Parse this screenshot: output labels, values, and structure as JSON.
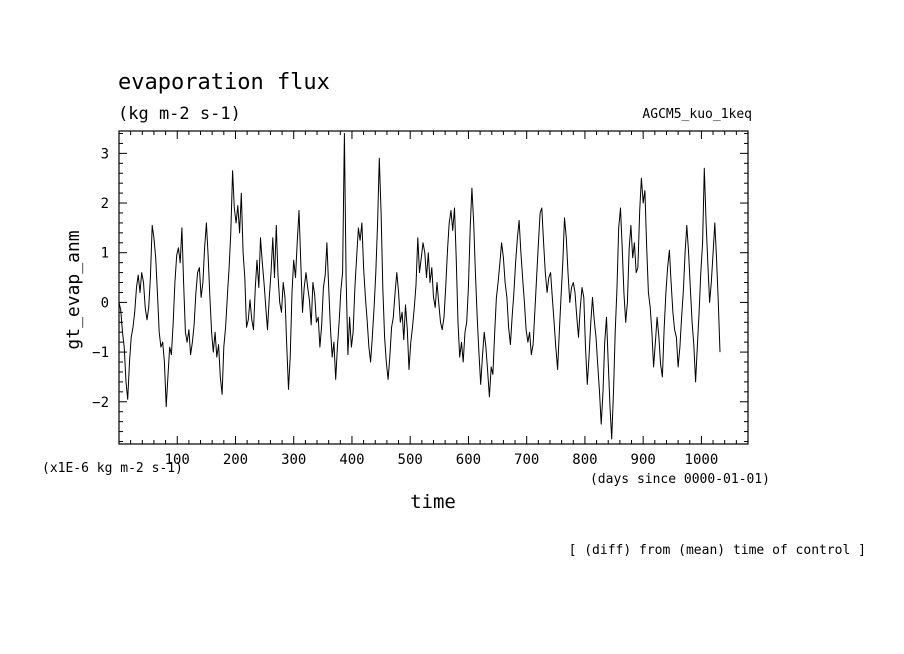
{
  "chart_data": {
    "type": "line",
    "title": "evaporation flux",
    "units": "(kg m-2 s-1)",
    "experiment": "AGCM5_kuo_1keq",
    "ylabel": "gt_evap_anm",
    "xlabel": "time",
    "x_units": "(days since 0000-01-01)",
    "y_scale_note": "(x1E-6 kg m-2 s-1)",
    "footnote": "[ (diff) from (mean) time of control ]",
    "xlim": [
      0,
      1080
    ],
    "ylim": [
      -2.85,
      3.45
    ],
    "xticks": [
      100,
      200,
      300,
      400,
      500,
      600,
      700,
      800,
      900,
      1000
    ],
    "yticks": [
      -2,
      -1,
      0,
      1,
      2,
      3
    ],
    "series": [
      {
        "name": "gt_evap_anm",
        "x_step": 3,
        "values": [
          0.0,
          -0.15,
          -0.6,
          -0.9,
          -1.6,
          -1.95,
          -1.2,
          -0.7,
          -0.5,
          -0.2,
          0.3,
          0.55,
          0.2,
          0.6,
          0.4,
          -0.1,
          -0.35,
          -0.1,
          0.5,
          1.55,
          1.3,
          0.9,
          0.2,
          -0.6,
          -0.9,
          -0.8,
          -1.2,
          -2.1,
          -1.5,
          -0.9,
          -1.05,
          -0.4,
          0.4,
          0.95,
          1.1,
          0.8,
          1.5,
          0.4,
          -0.6,
          -0.8,
          -0.55,
          -1.05,
          -0.8,
          -0.45,
          0.2,
          0.6,
          0.7,
          0.1,
          0.4,
          1.1,
          1.6,
          0.95,
          0.1,
          -0.6,
          -1.0,
          -0.6,
          -1.1,
          -0.85,
          -1.5,
          -1.85,
          -0.9,
          -0.5,
          0.1,
          0.7,
          1.4,
          2.65,
          1.9,
          1.6,
          1.95,
          1.4,
          2.2,
          1.0,
          0.5,
          -0.5,
          -0.35,
          0.05,
          -0.35,
          -0.55,
          0.3,
          0.85,
          0.3,
          1.3,
          0.8,
          0.4,
          -0.1,
          -0.55,
          0.1,
          0.6,
          1.3,
          0.5,
          1.55,
          0.55,
          0.0,
          -0.2,
          0.4,
          0.1,
          -0.85,
          -1.75,
          -1.1,
          0.2,
          0.85,
          0.5,
          1.2,
          1.85,
          0.85,
          -0.2,
          0.3,
          0.6,
          0.3,
          0.05,
          -0.45,
          0.4,
          0.15,
          -0.4,
          -0.3,
          -0.9,
          -0.45,
          0.3,
          0.55,
          1.2,
          0.3,
          -0.5,
          -1.1,
          -0.8,
          -1.55,
          -0.9,
          -0.4,
          0.25,
          0.6,
          3.4,
          0.5,
          -1.05,
          -0.3,
          -0.9,
          -0.6,
          0.3,
          0.9,
          1.5,
          1.25,
          1.6,
          0.7,
          0.1,
          -0.35,
          -0.9,
          -1.2,
          -0.7,
          -0.1,
          0.6,
          1.6,
          2.9,
          1.8,
          0.3,
          -0.7,
          -1.2,
          -1.55,
          -1.1,
          -0.5,
          -0.3,
          0.2,
          0.6,
          0.2,
          -0.4,
          -0.2,
          -0.75,
          -0.05,
          -0.55,
          -1.35,
          -0.8,
          -0.5,
          -0.1,
          0.35,
          1.3,
          0.6,
          0.9,
          1.2,
          1.0,
          0.5,
          1.0,
          0.4,
          0.7,
          0.1,
          -0.1,
          0.4,
          0.0,
          -0.4,
          -0.55,
          -0.3,
          0.3,
          1.05,
          1.6,
          1.85,
          1.45,
          1.9,
          0.9,
          -0.4,
          -1.1,
          -0.8,
          -1.2,
          -0.6,
          -0.4,
          0.3,
          1.5,
          2.3,
          1.6,
          0.6,
          -0.3,
          -1.0,
          -1.65,
          -1.1,
          -0.6,
          -0.9,
          -1.4,
          -1.9,
          -1.3,
          -1.45,
          -0.6,
          0.1,
          0.4,
          0.8,
          1.2,
          0.9,
          0.4,
          0.1,
          -0.5,
          -0.85,
          -0.3,
          0.2,
          0.8,
          1.3,
          1.65,
          1.0,
          0.5,
          0.0,
          -0.55,
          -0.8,
          -0.6,
          -1.05,
          -0.85,
          -0.2,
          0.5,
          1.15,
          1.8,
          1.9,
          1.2,
          0.6,
          0.2,
          0.5,
          0.6,
          0.1,
          -0.4,
          -0.9,
          -1.35,
          -0.6,
          0.1,
          0.8,
          1.7,
          1.3,
          0.6,
          0.0,
          0.3,
          0.4,
          0.2,
          -0.3,
          -0.7,
          -0.1,
          0.3,
          0.1,
          -0.9,
          -1.65,
          -1.1,
          -0.4,
          0.1,
          -0.35,
          -0.7,
          -1.25,
          -1.8,
          -2.45,
          -1.8,
          -0.8,
          -0.3,
          -1.2,
          -2.1,
          -2.75,
          -1.8,
          -0.6,
          0.3,
          1.5,
          1.9,
          1.1,
          0.2,
          -0.4,
          0.0,
          1.1,
          1.55,
          0.9,
          1.2,
          0.6,
          0.7,
          1.85,
          2.5,
          2.0,
          2.25,
          1.1,
          0.2,
          -0.1,
          -0.6,
          -1.3,
          -0.8,
          -0.3,
          -0.7,
          -1.25,
          -1.5,
          -0.55,
          0.2,
          0.7,
          1.05,
          0.4,
          -0.2,
          -0.55,
          -0.7,
          -1.3,
          -0.9,
          -0.3,
          0.25,
          1.0,
          1.55,
          1.0,
          0.3,
          -0.4,
          -0.85,
          -1.6,
          -0.9,
          -0.2,
          0.6,
          1.2,
          2.7,
          1.6,
          0.8,
          0.0,
          0.4,
          1.0,
          1.6,
          0.9,
          0.0,
          -1.0
        ]
      }
    ]
  }
}
